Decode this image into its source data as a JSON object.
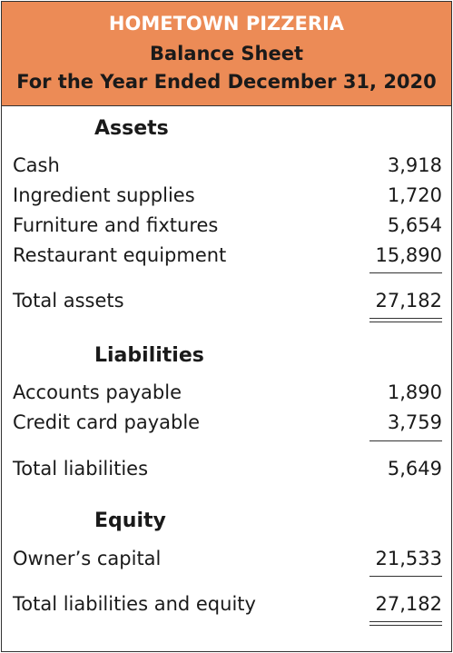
{
  "header": {
    "company": "HOMETOWN PIZZERIA",
    "statement": "Balance Sheet",
    "period": "For the Year Ended December 31, 2020"
  },
  "assets": {
    "heading": "Assets",
    "items": [
      {
        "label": "Cash",
        "value": "3,918"
      },
      {
        "label": "Ingredient supplies",
        "value": "1,720"
      },
      {
        "label": "Furniture and fixtures",
        "value": "5,654"
      },
      {
        "label": "Restaurant equipment",
        "value": "15,890"
      }
    ],
    "total_label": "Total assets",
    "total_value": "27,182"
  },
  "liabilities": {
    "heading": "Liabilities",
    "items": [
      {
        "label": "Accounts payable",
        "value": "1,890"
      },
      {
        "label": "Credit card payable",
        "value": "3,759"
      }
    ],
    "total_label": "Total liabilities",
    "total_value": "5,649"
  },
  "equity": {
    "heading": "Equity",
    "items": [
      {
        "label": "Owner’s capital",
        "value": "21,533"
      }
    ],
    "total_label": "Total liabilities and equity",
    "total_value": "27,182"
  },
  "colors": {
    "header_bg": "#ec8b56",
    "border": "#333333"
  }
}
